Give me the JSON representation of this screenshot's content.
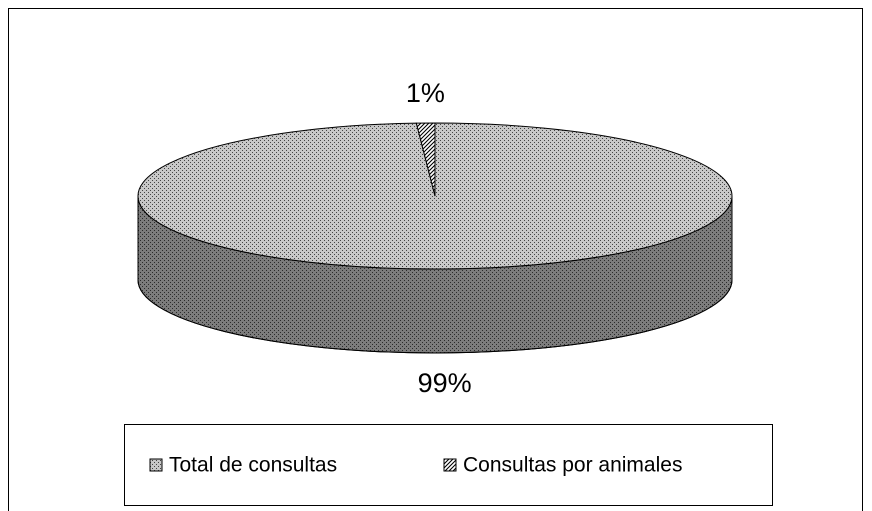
{
  "chart_data": {
    "type": "pie",
    "categories": [
      "Total de consultas",
      "Consultas por animales"
    ],
    "values": [
      99,
      1
    ],
    "value_labels": [
      "99%",
      "1%"
    ],
    "colors": [
      "#c8c8c8",
      "#ffffff"
    ],
    "patterns": [
      "dotted",
      "striped"
    ],
    "legend": "bottom"
  }
}
